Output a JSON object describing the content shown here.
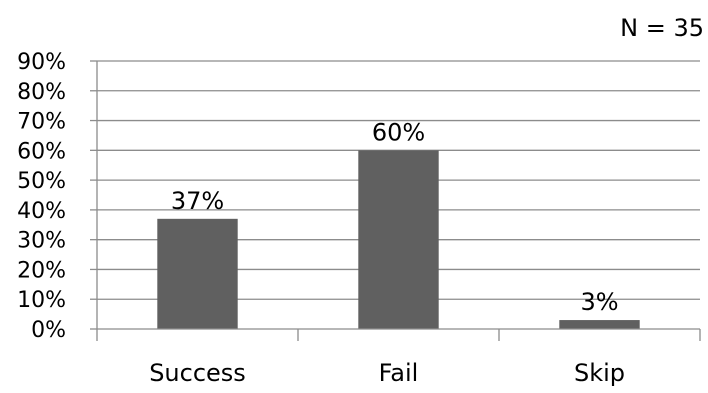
{
  "chart_data": {
    "type": "bar",
    "title": "",
    "xlabel": "",
    "ylabel": "",
    "categories": [
      "Success",
      "Fail",
      "Skip"
    ],
    "values": [
      37,
      60,
      3
    ],
    "data_labels": [
      "37%",
      "60%",
      "3%"
    ],
    "ylim": [
      0,
      90
    ],
    "yticks": [
      0,
      10,
      20,
      30,
      40,
      50,
      60,
      70,
      80,
      90
    ],
    "ytick_labels": [
      "0%",
      "10%",
      "20%",
      "30%",
      "40%",
      "50%",
      "60%",
      "70%",
      "80%",
      "90%"
    ],
    "grid": true,
    "legend": "none",
    "annotation": "N = 35",
    "bar_color": "#606060",
    "grid_color": "#8c8c8c"
  }
}
